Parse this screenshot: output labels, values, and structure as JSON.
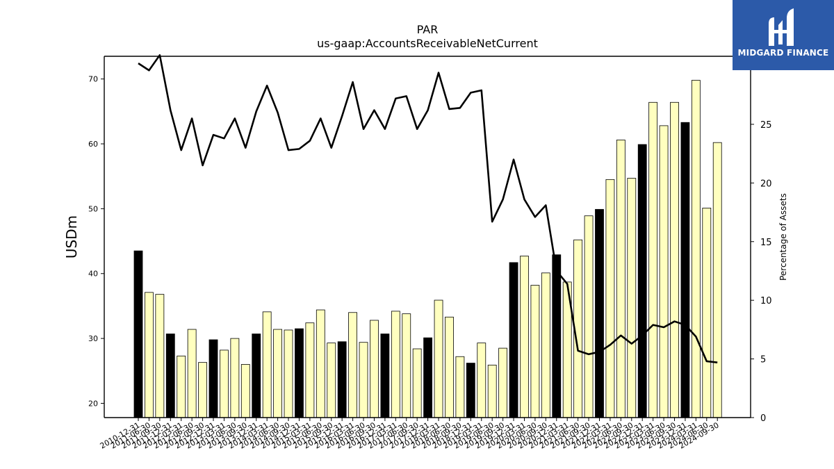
{
  "title": "PAR",
  "subtitle": "us-gaap:AccountsReceivableNetCurrent",
  "logo": {
    "text": "MIDGARD FINANCE",
    "background": "#2c5aa9"
  },
  "chart_data": {
    "type": "bar",
    "categories": [
      "2010-12-31",
      "2011-06-30",
      "2011-09-30",
      "2011-12-31",
      "2012-03-31",
      "2012-06-30",
      "2012-09-30",
      "2012-12-31",
      "2013-03-31",
      "2013-06-30",
      "2013-09-30",
      "2013-12-31",
      "2014-03-31",
      "2014-06-30",
      "2014-09-30",
      "2014-12-31",
      "2015-03-31",
      "2015-06-30",
      "2015-09-30",
      "2015-12-31",
      "2016-03-31",
      "2016-06-30",
      "2016-09-30",
      "2016-12-31",
      "2017-03-31",
      "2017-06-30",
      "2017-09-30",
      "2017-12-31",
      "2018-03-31",
      "2018-06-30",
      "2018-09-30",
      "2018-12-31",
      "2019-03-31",
      "2019-06-30",
      "2019-09-30",
      "2019-12-31",
      "2020-03-31",
      "2020-06-30",
      "2020-09-30",
      "2020-12-31",
      "2021-03-31",
      "2021-06-30",
      "2021-09-30",
      "2021-12-31",
      "2022-03-31",
      "2022-06-30",
      "2022-09-30",
      "2022-12-31",
      "2023-03-31",
      "2023-06-30",
      "2023-09-30",
      "2023-12-31",
      "2024-03-31",
      "2024-06-30",
      "2024-09-30"
    ],
    "series": [
      {
        "type": "bar",
        "axis": "left",
        "values": [
          43.5,
          37.1,
          36.8,
          30.7,
          27.3,
          31.4,
          26.3,
          29.8,
          28.2,
          30.0,
          26.0,
          30.7,
          34.1,
          31.4,
          31.3,
          31.5,
          32.4,
          34.4,
          29.3,
          29.5,
          34.0,
          29.4,
          32.8,
          30.7,
          34.2,
          33.8,
          28.4,
          30.1,
          35.9,
          33.3,
          27.2,
          26.2,
          29.3,
          25.9,
          28.5,
          41.7,
          42.7,
          38.2,
          40.1,
          42.9,
          38.7,
          45.2,
          48.9,
          49.9,
          54.5,
          60.6,
          54.7,
          59.9,
          66.4,
          62.8,
          66.4,
          63.3,
          69.8,
          50.1,
          60.2
        ],
        "highlight": [
          true,
          false,
          false,
          true,
          false,
          false,
          false,
          true,
          false,
          false,
          false,
          true,
          false,
          false,
          false,
          true,
          false,
          false,
          false,
          true,
          false,
          false,
          false,
          true,
          false,
          false,
          false,
          true,
          false,
          false,
          false,
          true,
          false,
          false,
          false,
          true,
          false,
          false,
          false,
          true,
          false,
          false,
          false,
          true,
          false,
          false,
          false,
          true,
          false,
          false,
          false,
          true,
          false,
          false,
          false
        ]
      },
      {
        "type": "line",
        "axis": "right",
        "values": [
          30.2,
          29.6,
          30.9,
          26.2,
          22.8,
          25.5,
          21.5,
          24.1,
          23.8,
          25.5,
          23.0,
          26.1,
          28.3,
          26.0,
          22.8,
          22.9,
          23.6,
          25.5,
          23.0,
          25.7,
          28.6,
          24.6,
          26.2,
          24.6,
          27.2,
          27.4,
          24.6,
          26.2,
          29.4,
          26.3,
          26.4,
          27.7,
          27.9,
          16.7,
          18.6,
          22.0,
          18.6,
          17.1,
          18.1,
          12.5,
          11.4,
          5.7,
          5.4,
          5.6,
          6.2,
          7.0,
          6.3,
          7.0,
          7.9,
          7.7,
          8.2,
          7.9,
          6.9,
          4.8,
          4.7
        ]
      }
    ],
    "colors": {
      "bar_fill": "#ffffbf",
      "bar_highlight": "#000000",
      "line": "#000000"
    },
    "ylabel": "USDm",
    "y2label": "Percentage of Assets",
    "ylim": [
      17.8,
      73.5
    ],
    "y2lim": [
      0,
      30.8
    ],
    "yticks": [
      "20",
      "30",
      "40",
      "50",
      "60",
      "70"
    ],
    "y2ticks": [
      "0",
      "5",
      "10",
      "15",
      "20",
      "25",
      "30"
    ]
  }
}
